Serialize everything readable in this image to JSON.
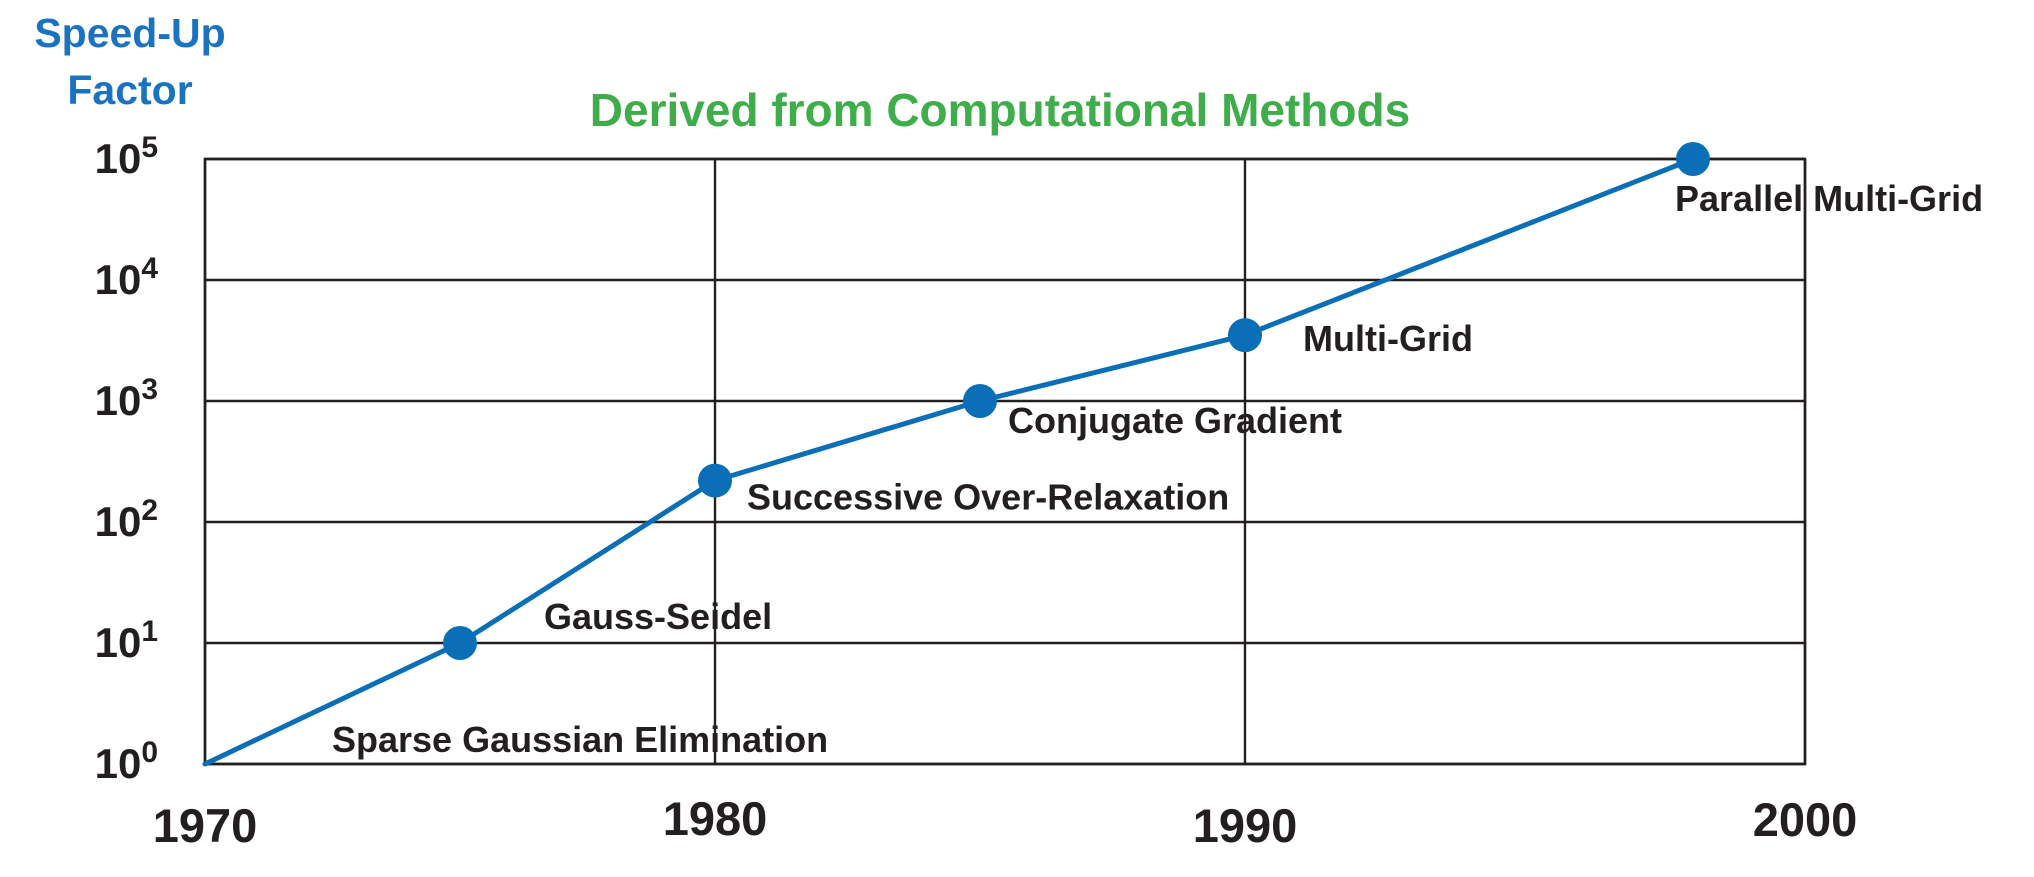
{
  "chart_data": {
    "type": "line",
    "title": "Derived from Computational Methods",
    "ylabel_lines": [
      "Speed-Up",
      "Factor"
    ],
    "xlabel": "",
    "x_ticks": [
      "1970",
      "1980",
      "1990",
      "2000"
    ],
    "y_ticks": [
      {
        "base": "10",
        "exp": "0"
      },
      {
        "base": "10",
        "exp": "1"
      },
      {
        "base": "10",
        "exp": "2"
      },
      {
        "base": "10",
        "exp": "3"
      },
      {
        "base": "10",
        "exp": "4"
      },
      {
        "base": "10",
        "exp": "5"
      }
    ],
    "xlim": [
      1970,
      2000
    ],
    "ylim": [
      1,
      100000
    ],
    "y_scale": "log",
    "grid": true,
    "legend": "none",
    "series": [
      {
        "points": [
          {
            "x": 1970,
            "y": 1,
            "label": "Sparse Gaussian Elimination",
            "marker": false
          },
          {
            "x": 1975,
            "y": 10,
            "label": "Gauss-Seidel",
            "marker": true
          },
          {
            "x": 1980,
            "y": 220,
            "label": "Successive Over-Relaxation",
            "marker": true
          },
          {
            "x": 1985,
            "y": 1000,
            "label": "Conjugate Gradient",
            "marker": true
          },
          {
            "x": 1990,
            "y": 3500,
            "label": "Multi-Grid",
            "marker": true
          },
          {
            "x": 1998,
            "y": 100000,
            "label": "Parallel Multi-Grid",
            "marker": true
          }
        ]
      }
    ],
    "colors": {
      "series": "#0a6fb7",
      "title": "#3fae4a",
      "ylabel": "#1a73c0",
      "axis_text": "#231f20",
      "grid": "#231f20"
    }
  }
}
